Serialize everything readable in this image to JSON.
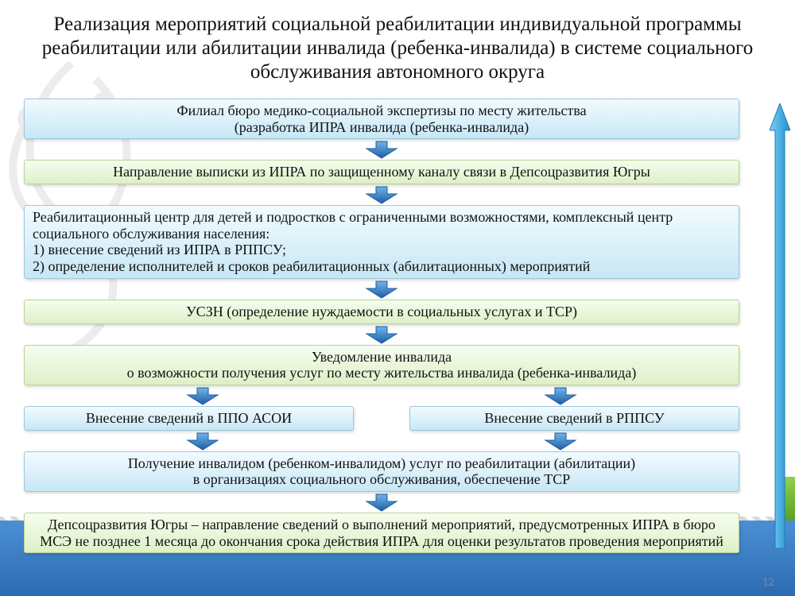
{
  "page_number": "12",
  "title": "Реализация мероприятий социальной реабилитации индивидуальной программы реабилитации или абилитации инвалида (ребенка-инвалида) в системе социального обслуживания автономного округа",
  "boxes": {
    "b1": "Филиал бюро медико-социальной экспертизы по месту жительства\n(разработка ИПРА инвалида (ребенка-инвалида)",
    "b2": "Направление выписки из ИПРА по защищенному каналу связи в Депсоцразвития Югры",
    "b3": "Реабилитационный центр для детей и подростков с ограниченными возможностями, комплексный центр социального обслуживания населения:\n1) внесение сведений из ИПРА в РППСУ;\n2) определение исполнителей и сроков реабилитационных (абилитационных) мероприятий",
    "b4": "УСЗН (определение нуждаемости в социальных услугах и ТСР)",
    "b5": "Уведомление инвалида\nо возможности получения услуг по месту жительства инвалида (ребенка-инвалида)",
    "b6a": "Внесение сведений в ППО АСОИ",
    "b6b": "Внесение сведений в РППСУ",
    "b7": "Получение инвалидом (ребенком-инвалидом) услуг по реабилитации (абилитации)\nв организациях социального обслуживания, обеспечение ТСР",
    "b8": "Депсоцразвития Югры – направление сведений о выполнений мероприятий, предусмотренных ИПРА в бюро МСЭ не позднее  1 месяца до окончания срока действия ИПРА для оценки результатов проведения мероприятий"
  },
  "colors": {
    "arrow_fill": "#2f7fd1",
    "arrow_stroke": "#1d5a9e",
    "up_arrow_fill": "#39a7e0",
    "up_arrow_stroke": "#1d7bb3"
  }
}
